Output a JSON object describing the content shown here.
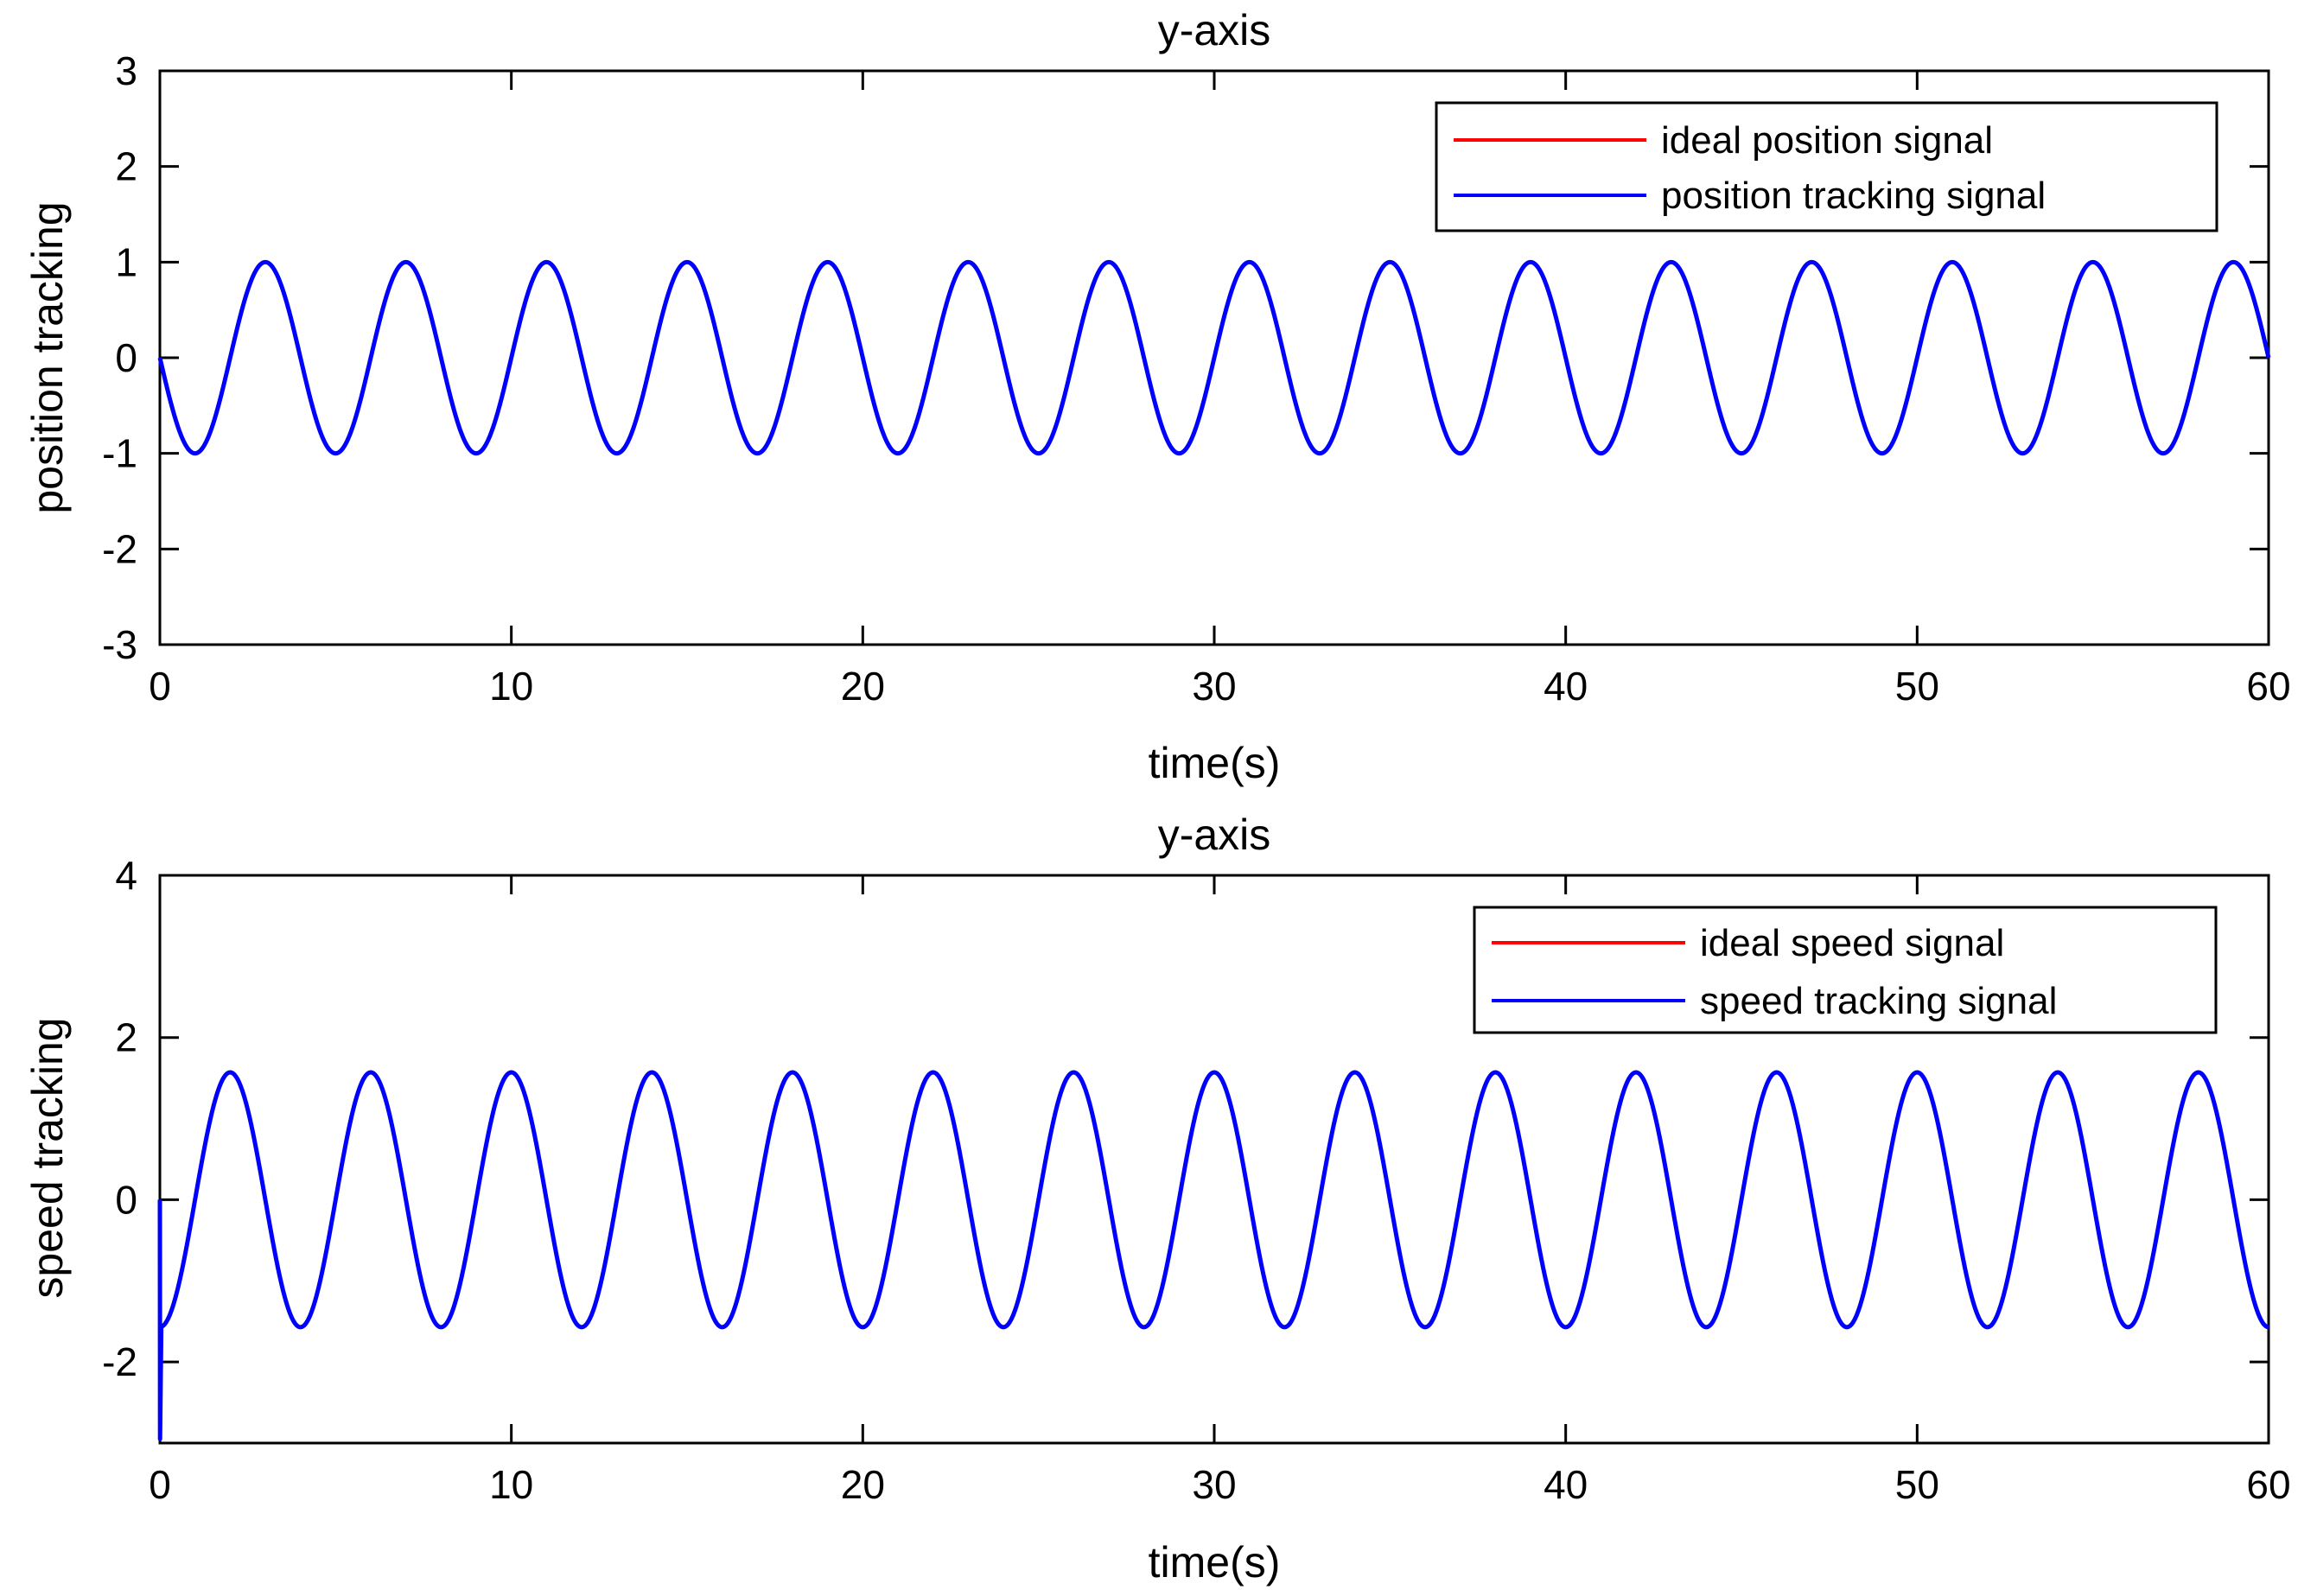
{
  "chart_data": [
    {
      "type": "line",
      "title": "y-axis",
      "xlabel": "time(s)",
      "ylabel": "position tracking",
      "xlim": [
        0,
        60
      ],
      "ylim": [
        -3,
        3
      ],
      "xticks": [
        0,
        10,
        20,
        30,
        40,
        50,
        60
      ],
      "yticks": [
        -3,
        -2,
        -1,
        0,
        1,
        2,
        3
      ],
      "grid": false,
      "legend_position": "top-right",
      "series": [
        {
          "name": "ideal position signal",
          "color": "#ff0000",
          "function": "-sin(pi*t/2)",
          "amplitude": 1,
          "period": 4,
          "phase": "negative-sine"
        },
        {
          "name": "position tracking signal",
          "color": "#0000ff",
          "function": "-sin(pi*t/2)",
          "amplitude": 1,
          "period": 4,
          "phase": "negative-sine"
        }
      ]
    },
    {
      "type": "line",
      "title": "y-axis",
      "xlabel": "time(s)",
      "ylabel": "speed tracking",
      "xlim": [
        0,
        60
      ],
      "ylim": [
        -3,
        4
      ],
      "xticks": [
        0,
        10,
        20,
        30,
        40,
        50,
        60
      ],
      "yticks": [
        -2,
        0,
        2,
        4
      ],
      "grid": false,
      "legend_position": "top-right",
      "series": [
        {
          "name": "ideal speed signal",
          "color": "#ff0000",
          "function": "-1.5708*cos(pi*t/2)",
          "amplitude": 1.5708,
          "period": 4,
          "phase": "negative-cosine"
        },
        {
          "name": "speed tracking signal",
          "color": "#0000ff",
          "function": "-1.5708*cos(pi*t/2)",
          "amplitude": 1.5708,
          "period": 4,
          "phase": "negative-cosine",
          "initial_value": 0,
          "initial_spike_min": -2.95
        }
      ]
    }
  ]
}
